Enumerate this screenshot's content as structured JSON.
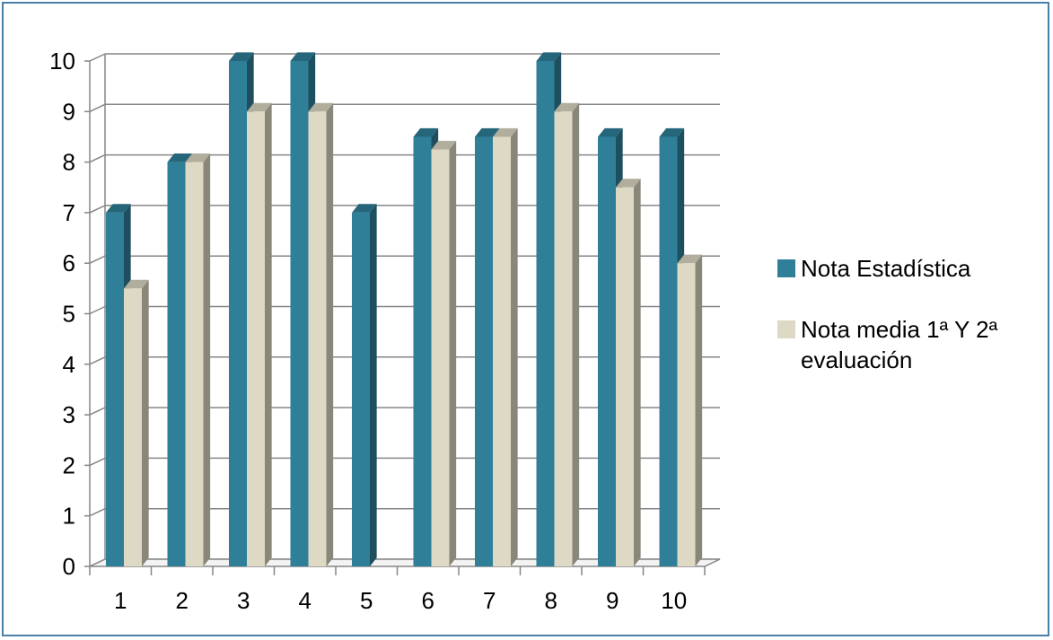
{
  "chart_data": {
    "type": "bar",
    "categories": [
      "1",
      "2",
      "3",
      "4",
      "5",
      "6",
      "7",
      "8",
      "9",
      "10"
    ],
    "series": [
      {
        "name": "Nota Estadística",
        "values": [
          7,
          8,
          10,
          10,
          7,
          8.5,
          8.5,
          10,
          8.5,
          8.5
        ],
        "color": "#2f7f99"
      },
      {
        "name": "Nota media 1ª Y 2ª evaluación",
        "values": [
          5.5,
          8,
          9,
          9,
          0,
          8.25,
          8.5,
          9,
          7.5,
          6
        ],
        "color": "#ddd9c4"
      }
    ],
    "yticks": [
      "0",
      "1",
      "2",
      "3",
      "4",
      "5",
      "6",
      "7",
      "8",
      "9",
      "10"
    ],
    "ylim": [
      0,
      10
    ],
    "grid": true,
    "legend_position": "right",
    "title": "",
    "xlabel": "",
    "ylabel": ""
  }
}
